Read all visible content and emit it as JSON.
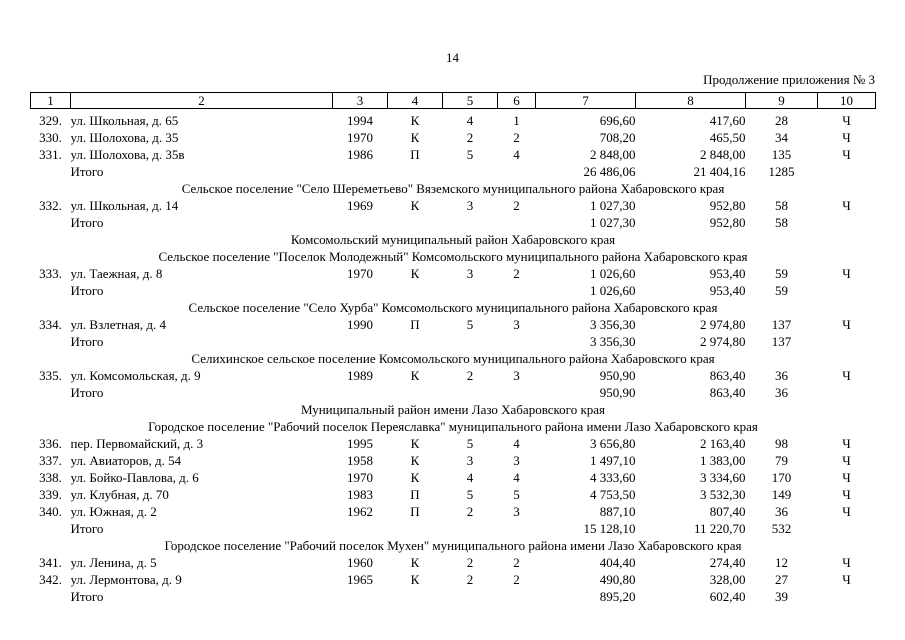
{
  "page": {
    "number": "14",
    "continuation_note": "Продолжение приложения № 3"
  },
  "table": {
    "columns": [
      "1",
      "2",
      "3",
      "4",
      "5",
      "6",
      "7",
      "8",
      "9",
      "10"
    ],
    "rows": [
      {
        "type": "data",
        "cells": [
          "329.",
          "ул. Школьная, д. 65",
          "1994",
          "К",
          "4",
          "1",
          "696,60",
          "417,60",
          "28",
          "Ч"
        ]
      },
      {
        "type": "data",
        "cells": [
          "330.",
          "ул. Шолохова, д. 35",
          "1970",
          "К",
          "2",
          "2",
          "708,20",
          "465,50",
          "34",
          "Ч"
        ]
      },
      {
        "type": "data",
        "cells": [
          "331.",
          "ул. Шолохова, д. 35в",
          "1986",
          "П",
          "5",
          "4",
          "2 848,00",
          "2 848,00",
          "135",
          "Ч"
        ]
      },
      {
        "type": "total",
        "cells": [
          "",
          "Итого",
          "",
          "",
          "",
          "",
          "26 486,06",
          "21 404,16",
          "1285",
          ""
        ]
      },
      {
        "type": "section",
        "text": "Сельское поселение \"Село Шереметьево\" Вяземского муниципального района Хабаровского края"
      },
      {
        "type": "data",
        "cells": [
          "332.",
          "ул. Школьная, д. 14",
          "1969",
          "К",
          "3",
          "2",
          "1 027,30",
          "952,80",
          "58",
          "Ч"
        ]
      },
      {
        "type": "total",
        "cells": [
          "",
          "Итого",
          "",
          "",
          "",
          "",
          "1 027,30",
          "952,80",
          "58",
          ""
        ]
      },
      {
        "type": "section",
        "text": "Комсомольский муниципальный район Хабаровского края"
      },
      {
        "type": "section",
        "text": "Сельское поселение \"Поселок Молодежный\" Комсомольского муниципального района Хабаровского края"
      },
      {
        "type": "data",
        "cells": [
          "333.",
          "ул. Таежная, д. 8",
          "1970",
          "К",
          "3",
          "2",
          "1 026,60",
          "953,40",
          "59",
          "Ч"
        ]
      },
      {
        "type": "total",
        "cells": [
          "",
          "Итого",
          "",
          "",
          "",
          "",
          "1 026,60",
          "953,40",
          "59",
          ""
        ]
      },
      {
        "type": "section",
        "text": "Сельское поселение \"Село Хурба\" Комсомольского муниципального района Хабаровского края"
      },
      {
        "type": "data",
        "cells": [
          "334.",
          "ул. Взлетная, д. 4",
          "1990",
          "П",
          "5",
          "3",
          "3 356,30",
          "2 974,80",
          "137",
          "Ч"
        ]
      },
      {
        "type": "total",
        "cells": [
          "",
          "Итого",
          "",
          "",
          "",
          "",
          "3 356,30",
          "2 974,80",
          "137",
          ""
        ]
      },
      {
        "type": "section",
        "text": "Селихинское сельское поселение Комсомольского муниципального района Хабаровского края"
      },
      {
        "type": "data",
        "cells": [
          "335.",
          "ул. Комсомольская, д. 9",
          "1989",
          "К",
          "2",
          "3",
          "950,90",
          "863,40",
          "36",
          "Ч"
        ]
      },
      {
        "type": "total",
        "cells": [
          "",
          "Итого",
          "",
          "",
          "",
          "",
          "950,90",
          "863,40",
          "36",
          ""
        ]
      },
      {
        "type": "section",
        "text": "Муниципальный район имени Лазо Хабаровского края"
      },
      {
        "type": "section",
        "text": "Городское поселение \"Рабочий поселок Переяславка\" муниципального района имени Лазо Хабаровского края"
      },
      {
        "type": "data",
        "cells": [
          "336.",
          "пер. Первомайский, д. 3",
          "1995",
          "К",
          "5",
          "4",
          "3 656,80",
          "2 163,40",
          "98",
          "Ч"
        ]
      },
      {
        "type": "data",
        "cells": [
          "337.",
          "ул. Авиаторов, д. 54",
          "1958",
          "К",
          "3",
          "3",
          "1 497,10",
          "1 383,00",
          "79",
          "Ч"
        ]
      },
      {
        "type": "data",
        "cells": [
          "338.",
          "ул. Бойко-Павлова, д. 6",
          "1970",
          "К",
          "4",
          "4",
          "4 333,60",
          "3 334,60",
          "170",
          "Ч"
        ]
      },
      {
        "type": "data",
        "cells": [
          "339.",
          "ул. Клубная, д. 70",
          "1983",
          "П",
          "5",
          "5",
          "4 753,50",
          "3 532,30",
          "149",
          "Ч"
        ]
      },
      {
        "type": "data",
        "cells": [
          "340.",
          "ул. Южная, д. 2",
          "1962",
          "П",
          "2",
          "3",
          "887,10",
          "807,40",
          "36",
          "Ч"
        ]
      },
      {
        "type": "total",
        "cells": [
          "",
          "Итого",
          "",
          "",
          "",
          "",
          "15 128,10",
          "11 220,70",
          "532",
          ""
        ]
      },
      {
        "type": "section",
        "text": "Городское поселение \"Рабочий поселок Мухен\" муниципального района имени Лазо Хабаровского края"
      },
      {
        "type": "data",
        "cells": [
          "341.",
          "ул. Ленина, д. 5",
          "1960",
          "К",
          "2",
          "2",
          "404,40",
          "274,40",
          "12",
          "Ч"
        ]
      },
      {
        "type": "data",
        "cells": [
          "342.",
          "ул. Лермонтова, д. 9",
          "1965",
          "К",
          "2",
          "2",
          "490,80",
          "328,00",
          "27",
          "Ч"
        ]
      },
      {
        "type": "total",
        "cells": [
          "",
          "Итого",
          "",
          "",
          "",
          "",
          "895,20",
          "602,40",
          "39",
          ""
        ]
      }
    ]
  }
}
